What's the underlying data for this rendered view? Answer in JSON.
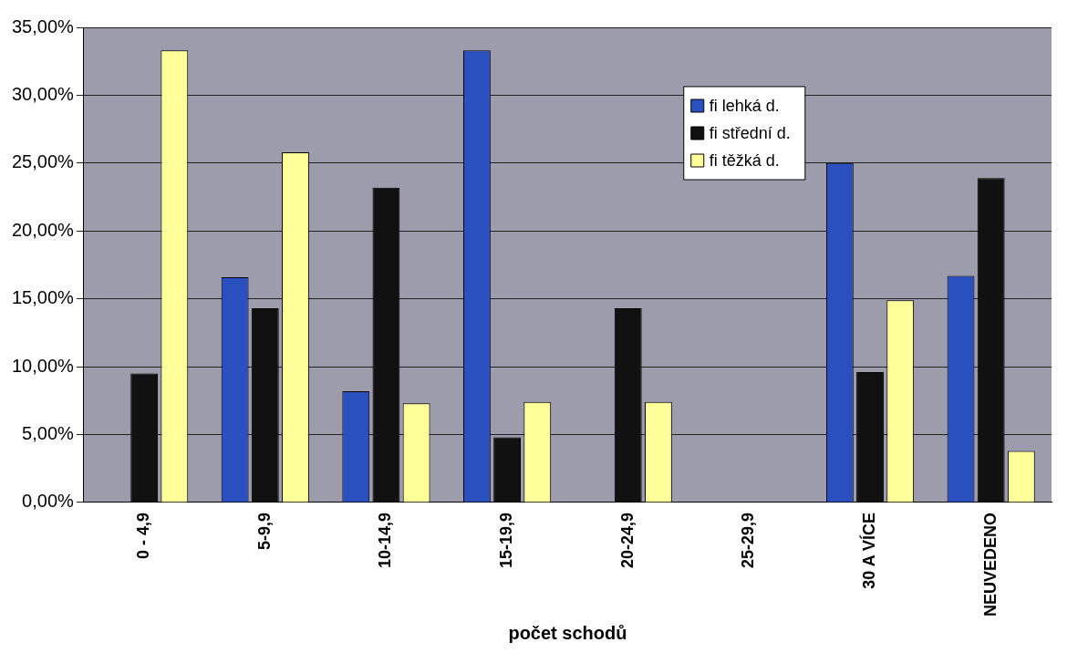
{
  "chart_data": {
    "type": "bar",
    "xlabel": "počet schodů",
    "categories": [
      "0 - 4,9",
      "5-9,9",
      "10-14,9",
      "15-19,9",
      "20-24,9",
      "25-29,9",
      "30 A VÍCE",
      "NEUVEDENO"
    ],
    "series": [
      {
        "name": "fi lehká d.",
        "color": "#2a4fbf",
        "values": [
          0,
          16.6,
          8.2,
          33.3,
          0,
          0,
          25,
          16.7
        ]
      },
      {
        "name": "fi střední d.",
        "color": "#111111",
        "values": [
          9.5,
          14.3,
          23.2,
          4.8,
          14.3,
          0,
          9.6,
          23.9
        ]
      },
      {
        "name": "fi těžká d.",
        "color": "#ffff99",
        "values": [
          33.3,
          25.8,
          7.3,
          7.4,
          7.4,
          0,
          14.9,
          3.8
        ]
      }
    ],
    "ylim": [
      0,
      35
    ],
    "yticks": [
      {
        "value": 0,
        "label": "0,00%"
      },
      {
        "value": 5,
        "label": "5,00%"
      },
      {
        "value": 10,
        "label": "10,00%"
      },
      {
        "value": 15,
        "label": "15,00%"
      },
      {
        "value": 20,
        "label": "20,00%"
      },
      {
        "value": 25,
        "label": "25,00%"
      },
      {
        "value": 30,
        "label": "30,00%"
      },
      {
        "value": 35,
        "label": "35,00%"
      }
    ],
    "grid": "y",
    "legend": "top right"
  }
}
